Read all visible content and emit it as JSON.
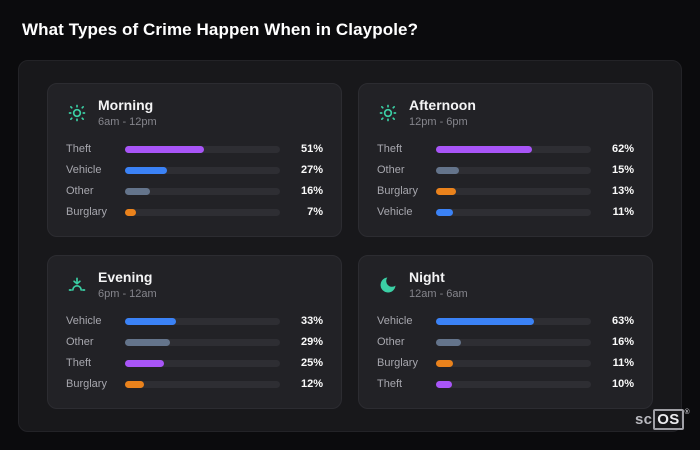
{
  "page": {
    "title": "What Types of Crime Happen When in Claypole?"
  },
  "brand": {
    "prefix": "sc",
    "box": "OS",
    "reg": "®"
  },
  "colors": {
    "theft": "#a855f7",
    "vehicle": "#3b82f6",
    "other": "#64748b",
    "burglary": "#ea821c",
    "icon": "#3bd0a5"
  },
  "chart_data": [
    {
      "type": "bar",
      "orientation": "horizontal",
      "title": "Morning",
      "subtitle": "6am - 12pm",
      "icon": "sun-icon",
      "xlim": [
        0,
        100
      ],
      "categories": [
        "Theft",
        "Vehicle",
        "Other",
        "Burglary"
      ],
      "values": [
        51,
        27,
        16,
        7
      ],
      "labels": [
        "51%",
        "27%",
        "16%",
        "7%"
      ],
      "color_keys": [
        "theft",
        "vehicle",
        "other",
        "burglary"
      ]
    },
    {
      "type": "bar",
      "orientation": "horizontal",
      "title": "Afternoon",
      "subtitle": "12pm - 6pm",
      "icon": "sun-icon",
      "xlim": [
        0,
        100
      ],
      "categories": [
        "Theft",
        "Other",
        "Burglary",
        "Vehicle"
      ],
      "values": [
        62,
        15,
        13,
        11
      ],
      "labels": [
        "62%",
        "15%",
        "13%",
        "11%"
      ],
      "color_keys": [
        "theft",
        "other",
        "burglary",
        "vehicle"
      ]
    },
    {
      "type": "bar",
      "orientation": "horizontal",
      "title": "Evening",
      "subtitle": "6pm - 12am",
      "icon": "sunset-icon",
      "xlim": [
        0,
        100
      ],
      "categories": [
        "Vehicle",
        "Other",
        "Theft",
        "Burglary"
      ],
      "values": [
        33,
        29,
        25,
        12
      ],
      "labels": [
        "33%",
        "29%",
        "25%",
        "12%"
      ],
      "color_keys": [
        "vehicle",
        "other",
        "theft",
        "burglary"
      ]
    },
    {
      "type": "bar",
      "orientation": "horizontal",
      "title": "Night",
      "subtitle": "12am - 6am",
      "icon": "moon-icon",
      "xlim": [
        0,
        100
      ],
      "categories": [
        "Vehicle",
        "Other",
        "Burglary",
        "Theft"
      ],
      "values": [
        63,
        16,
        11,
        10
      ],
      "labels": [
        "63%",
        "16%",
        "11%",
        "10%"
      ],
      "color_keys": [
        "vehicle",
        "other",
        "burglary",
        "theft"
      ]
    }
  ]
}
